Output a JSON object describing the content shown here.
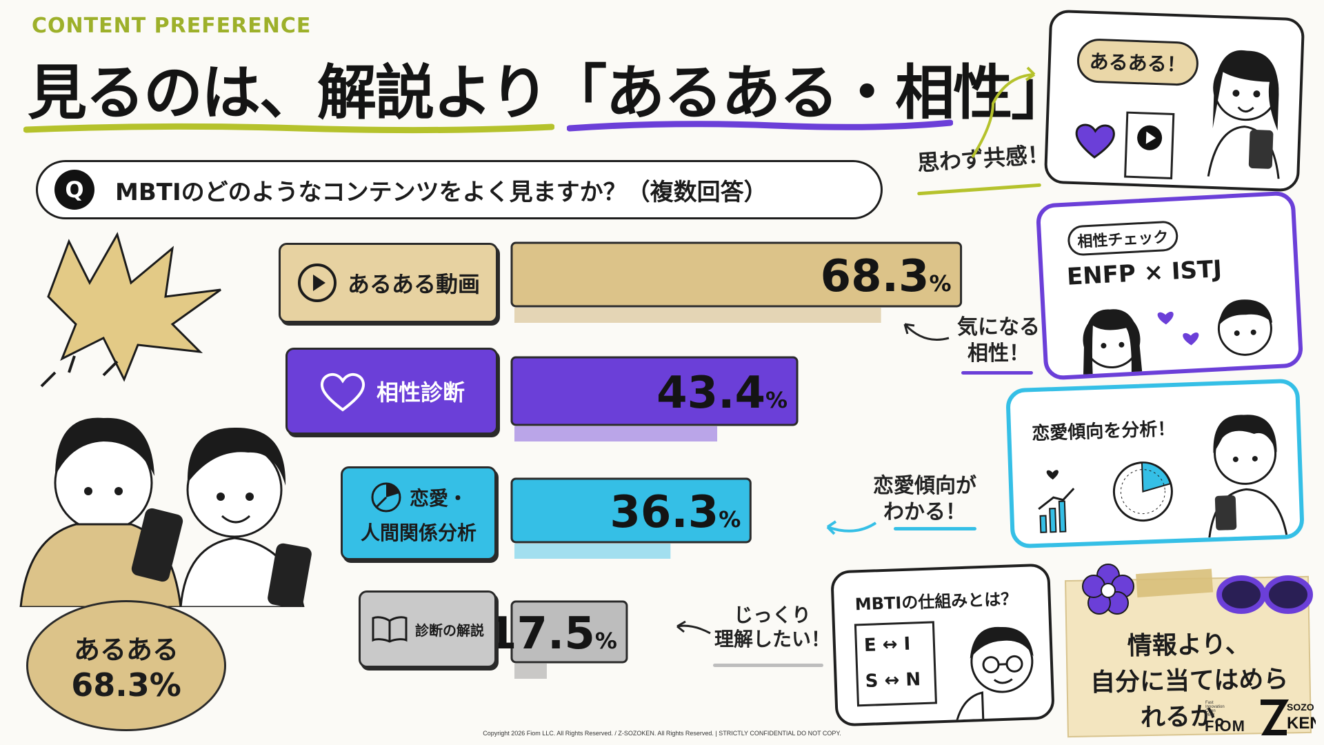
{
  "header": {
    "kicker": "CONTENT PREFERENCE",
    "headline": "見るのは、解説より「あるある・相性」"
  },
  "question": {
    "badge": "Q",
    "text": "MBTIのどのようなコンテンツをよく見ますか？（複数回答）"
  },
  "chart_data": {
    "type": "bar",
    "orientation": "horizontal",
    "categories": [
      "あるある動画",
      "相性診断",
      "恋愛・人間関係分析",
      "診断の解説"
    ],
    "category_lines": [
      [
        "あるある動画"
      ],
      [
        "相性診断"
      ],
      [
        "恋愛・",
        "人間関係分析"
      ],
      [
        "診断の解説"
      ]
    ],
    "values": [
      68.3,
      43.4,
      36.3,
      17.5
    ],
    "value_labels": [
      "68.3",
      "43.4",
      "36.3",
      "17.5"
    ],
    "unit": "%",
    "colors": [
      "#dcc389",
      "#6b3fd8",
      "#35bfe6",
      "#bdbdbd"
    ],
    "xlim": [
      0,
      100
    ],
    "title": "",
    "xlabel": "",
    "ylabel": ""
  },
  "icons": [
    "play-icon",
    "heart-icon",
    "pie-chart-icon",
    "book-icon"
  ],
  "notes": {
    "empathy": "思わず共感！",
    "compat_line1": "気になる",
    "compat_line2": "相性！",
    "love_line1": "恋愛傾向が",
    "love_line2": "わかる！",
    "explain_line1": "じっくり",
    "explain_line2": "理解したい！"
  },
  "cards": {
    "aruaru_bubble": "あるある！",
    "compat_chip": "相性チェック",
    "compat_pair": "ENFP × ISTJ",
    "love_title": "恋愛傾向を分析！",
    "mbti_title": "MBTIの仕組みとは？",
    "mbti_row1": "E ↔ I",
    "mbti_row2": "S ↔ N"
  },
  "summary": {
    "label": "あるある",
    "value": "68.3%"
  },
  "memo": {
    "line1": "情報より、",
    "line2": "自分に当てはめられるか。"
  },
  "logos": {
    "fiom": "FIOM",
    "fiom_sub": [
      "Fast",
      "Innovation",
      "Open",
      "Mind"
    ],
    "sozo": "SOZO",
    "ken": "KEN"
  },
  "footer": {
    "copyright": "Copyright 2026 Fiom LLC. All Rights Reserved. / Z-SOZOKEN. All Rights Reserved. | STRICTLY CONFIDENTIAL DO NOT COPY."
  }
}
